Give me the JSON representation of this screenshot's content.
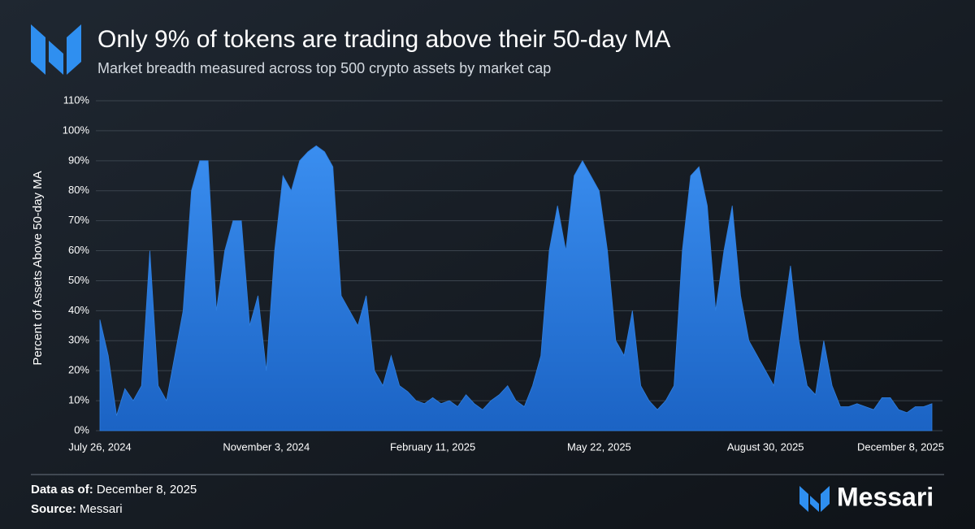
{
  "chart_data": {
    "type": "area",
    "title": "Only 9% of tokens are trading above their 50-day MA",
    "subtitle": "Market breadth measured across top 500 crypto assets by market cap",
    "y_label": "Percent of Assets Above 50-day MA",
    "color": "#2f7fe0",
    "grid": true,
    "x": [
      "2024-07-26",
      "2024-07-31",
      "2024-08-05",
      "2024-08-10",
      "2024-08-15",
      "2024-08-20",
      "2024-08-25",
      "2024-08-30",
      "2024-09-04",
      "2024-09-09",
      "2024-09-14",
      "2024-09-19",
      "2024-09-24",
      "2024-09-29",
      "2024-10-04",
      "2024-10-09",
      "2024-10-14",
      "2024-10-19",
      "2024-10-24",
      "2024-10-29",
      "2024-11-03",
      "2024-11-08",
      "2024-11-13",
      "2024-11-18",
      "2024-11-23",
      "2024-11-28",
      "2024-12-03",
      "2024-12-08",
      "2024-12-13",
      "2024-12-18",
      "2024-12-23",
      "2024-12-28",
      "2025-01-02",
      "2025-01-07",
      "2025-01-12",
      "2025-01-17",
      "2025-01-22",
      "2025-01-27",
      "2025-02-01",
      "2025-02-06",
      "2025-02-11",
      "2025-02-16",
      "2025-02-21",
      "2025-02-26",
      "2025-03-03",
      "2025-03-08",
      "2025-03-13",
      "2025-03-18",
      "2025-03-23",
      "2025-03-28",
      "2025-04-02",
      "2025-04-07",
      "2025-04-12",
      "2025-04-17",
      "2025-04-22",
      "2025-04-27",
      "2025-05-02",
      "2025-05-07",
      "2025-05-12",
      "2025-05-17",
      "2025-05-22",
      "2025-05-27",
      "2025-06-01",
      "2025-06-06",
      "2025-06-11",
      "2025-06-16",
      "2025-06-21",
      "2025-06-26",
      "2025-07-01",
      "2025-07-06",
      "2025-07-11",
      "2025-07-16",
      "2025-07-21",
      "2025-07-26",
      "2025-07-31",
      "2025-08-05",
      "2025-08-10",
      "2025-08-15",
      "2025-08-20",
      "2025-08-25",
      "2025-08-30",
      "2025-09-04",
      "2025-09-09",
      "2025-09-14",
      "2025-09-19",
      "2025-09-24",
      "2025-09-29",
      "2025-10-04",
      "2025-10-09",
      "2025-10-14",
      "2025-10-19",
      "2025-10-24",
      "2025-10-29",
      "2025-11-03",
      "2025-11-08",
      "2025-11-13",
      "2025-11-18",
      "2025-11-23",
      "2025-11-28",
      "2025-12-03",
      "2025-12-08"
    ],
    "values": [
      37,
      25,
      5,
      14,
      10,
      15,
      60,
      15,
      10,
      25,
      40,
      80,
      90,
      90,
      40,
      60,
      70,
      70,
      35,
      45,
      20,
      60,
      85,
      80,
      90,
      93,
      95,
      93,
      88,
      45,
      40,
      35,
      45,
      20,
      15,
      25,
      15,
      13,
      10,
      9,
      11,
      9,
      10,
      8,
      12,
      9,
      7,
      10,
      12,
      15,
      10,
      8,
      15,
      25,
      60,
      75,
      60,
      85,
      90,
      85,
      80,
      60,
      30,
      25,
      40,
      15,
      10,
      7,
      10,
      15,
      60,
      85,
      88,
      75,
      40,
      60,
      75,
      45,
      30,
      25,
      20,
      15,
      35,
      55,
      30,
      15,
      12,
      30,
      15,
      8,
      8,
      9,
      8,
      7,
      11,
      11,
      7,
      6,
      8,
      8,
      9
    ],
    "xlim": [
      "2024-07-26",
      "2025-12-08"
    ],
    "xticks": [
      {
        "value": "2024-07-26",
        "label": "July 26, 2024"
      },
      {
        "value": "2024-11-03",
        "label": "November 3, 2024"
      },
      {
        "value": "2025-02-11",
        "label": "February 11, 2025"
      },
      {
        "value": "2025-05-22",
        "label": "May 22, 2025"
      },
      {
        "value": "2025-08-30",
        "label": "August 30, 2025"
      },
      {
        "value": "2025-12-08",
        "label": "December 8, 2025"
      }
    ],
    "ylim": [
      0,
      110
    ],
    "yticks": [
      {
        "value": 0,
        "label": "0%"
      },
      {
        "value": 10,
        "label": "10%"
      },
      {
        "value": 20,
        "label": "20%"
      },
      {
        "value": 30,
        "label": "30%"
      },
      {
        "value": 40,
        "label": "40%"
      },
      {
        "value": 50,
        "label": "50%"
      },
      {
        "value": 60,
        "label": "60%"
      },
      {
        "value": 70,
        "label": "70%"
      },
      {
        "value": 80,
        "label": "80%"
      },
      {
        "value": 90,
        "label": "90%"
      },
      {
        "value": 100,
        "label": "100%"
      },
      {
        "value": 110,
        "label": "110%"
      }
    ]
  },
  "footer": {
    "data_as_of_label": "Data as of:",
    "data_as_of": "December 8, 2025",
    "source_label": "Source:",
    "source": "Messari"
  },
  "brand": "Messari"
}
